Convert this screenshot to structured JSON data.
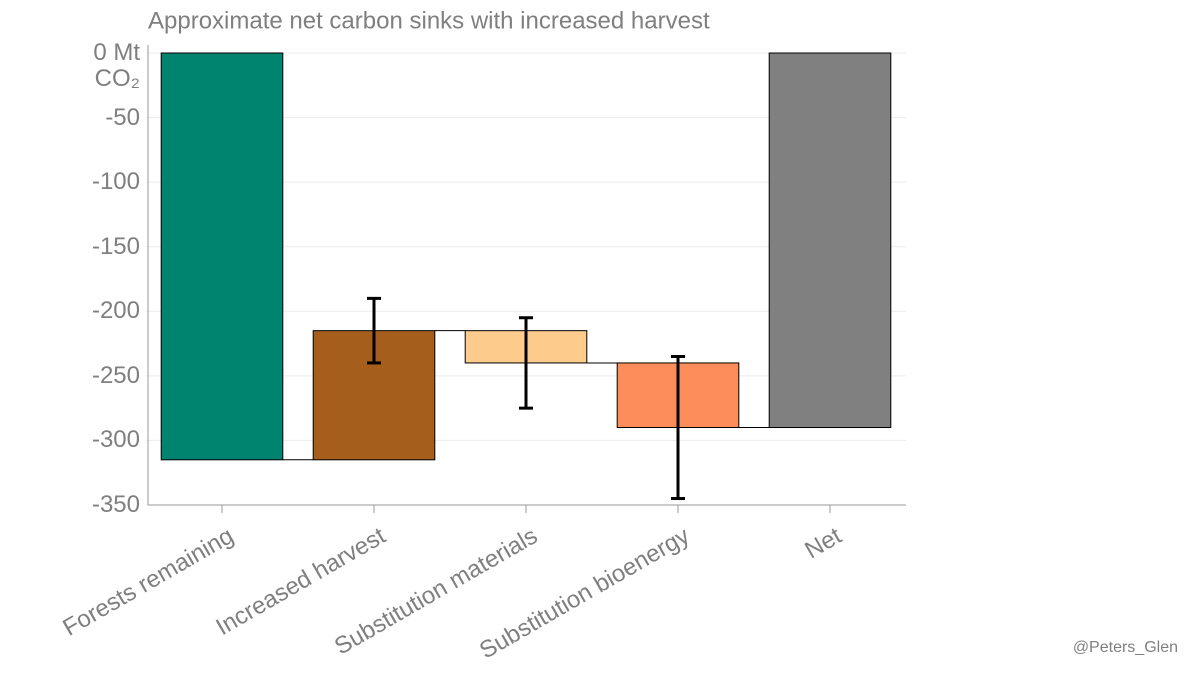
{
  "chart_data": {
    "type": "waterfall",
    "title": "Approximate net carbon sinks with increased harvest",
    "categories": [
      "Forests remaining",
      "Increased harvest",
      "Substitution materials",
      "Substitution bioenergy",
      "Net"
    ],
    "values": [
      -315,
      100,
      -25,
      -50,
      -290
    ],
    "measure": [
      "relative",
      "relative",
      "relative",
      "relative",
      "total"
    ],
    "errors": [
      null,
      25,
      35,
      55,
      null
    ],
    "colors": [
      "#008470",
      "#a65e1c",
      "#fdcb8c",
      "#fd8d5a",
      "#808080"
    ],
    "ylim": [
      -350,
      0
    ],
    "yticks": [
      {
        "value": 0,
        "label": "0 Mt CO₂"
      },
      -50,
      -100,
      -150,
      -200,
      -250,
      -300,
      -350
    ],
    "grid": true,
    "annotation": "@Peters_Glen"
  }
}
